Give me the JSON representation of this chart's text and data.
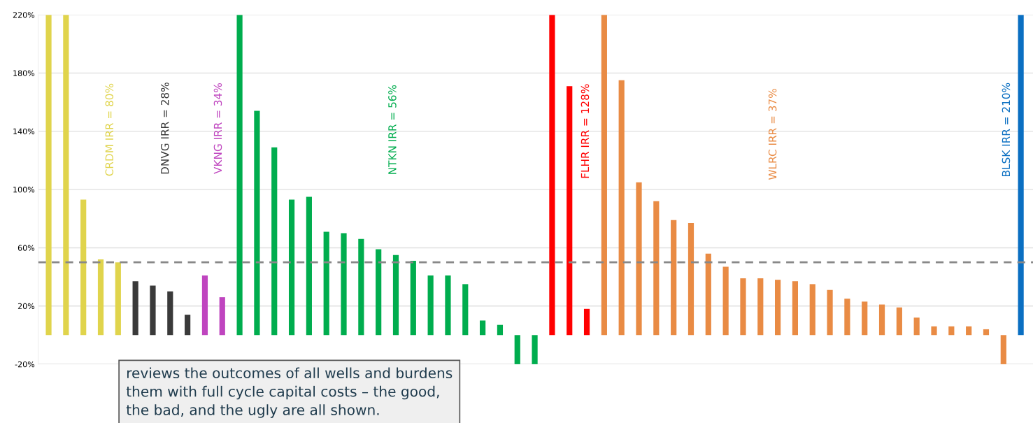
{
  "chart_data": {
    "type": "bar",
    "categories": [
      null,
      null,
      null,
      null,
      null,
      null,
      null,
      null,
      null,
      null,
      null,
      null,
      null,
      null,
      null,
      null,
      null,
      null,
      null,
      null,
      null,
      null,
      null,
      null,
      null,
      null,
      null,
      null,
      null,
      null,
      null,
      null,
      null,
      null,
      null,
      null,
      null,
      null,
      null,
      null,
      null,
      null,
      null,
      null,
      null,
      null,
      null,
      null,
      null,
      null,
      null,
      null,
      null,
      null,
      null,
      null,
      null
    ],
    "values": [
      220,
      220,
      93,
      52,
      50,
      37,
      34,
      30,
      14,
      41,
      26,
      220,
      154,
      129,
      93,
      95,
      71,
      70,
      66,
      59,
      55,
      51,
      41,
      41,
      35,
      10,
      7,
      -20,
      -20,
      220,
      171,
      18,
      220,
      175,
      105,
      92,
      79,
      77,
      56,
      47,
      39,
      39,
      38,
      37,
      35,
      31,
      25,
      23,
      21,
      19,
      12,
      6,
      6,
      6,
      4,
      -20,
      220
    ],
    "colors": [
      "#e0d44c",
      "#e0d44c",
      "#e0d44c",
      "#e0d44c",
      "#e0d44c",
      "#3a3a3a",
      "#3a3a3a",
      "#3a3a3a",
      "#3a3a3a",
      "#bf45bf",
      "#bf45bf",
      "#00ad4e",
      "#00ad4e",
      "#00ad4e",
      "#00ad4e",
      "#00ad4e",
      "#00ad4e",
      "#00ad4e",
      "#00ad4e",
      "#00ad4e",
      "#00ad4e",
      "#00ad4e",
      "#00ad4e",
      "#00ad4e",
      "#00ad4e",
      "#00ad4e",
      "#00ad4e",
      "#00ad4e",
      "#00ad4e",
      "#ff0000",
      "#ff0000",
      "#ff0000",
      "#e98b44",
      "#e98b44",
      "#e98b44",
      "#e98b44",
      "#e98b44",
      "#e98b44",
      "#e98b44",
      "#e98b44",
      "#e98b44",
      "#e98b44",
      "#e98b44",
      "#e98b44",
      "#e98b44",
      "#e98b44",
      "#e98b44",
      "#e98b44",
      "#e98b44",
      "#e98b44",
      "#e98b44",
      "#e98b44",
      "#e98b44",
      "#e98b44",
      "#e98b44",
      "#e98b44",
      "#0a6fc2"
    ],
    "ylim": [
      -20,
      220
    ],
    "yticks": [
      {
        "value": -20,
        "label": "-20%"
      },
      {
        "value": 20,
        "label": "20%"
      },
      {
        "value": 60,
        "label": "60%"
      },
      {
        "value": 100,
        "label": "100%"
      },
      {
        "value": 140,
        "label": "140%"
      },
      {
        "value": 180,
        "label": "180%"
      },
      {
        "value": 220,
        "label": "220%"
      }
    ],
    "grid": "y",
    "ref_lines": [
      {
        "axis": "y",
        "value": 50,
        "color": "#888888",
        "line_style": "dashed"
      }
    ],
    "annotations": [
      "CRDM IRR = 80%",
      "DNVG IRR = 28%",
      "VKNG IRR = 34%",
      "NTKN IRR = 56%",
      "FLHR IRR = 128%",
      "WLRC IRR = 37%",
      "BLSK IRR = 210%",
      "reviews the outcomes of all wells and burdens\nthem with full cycle capital costs – the good,\nthe bad, and the ugly are all shown."
    ]
  }
}
